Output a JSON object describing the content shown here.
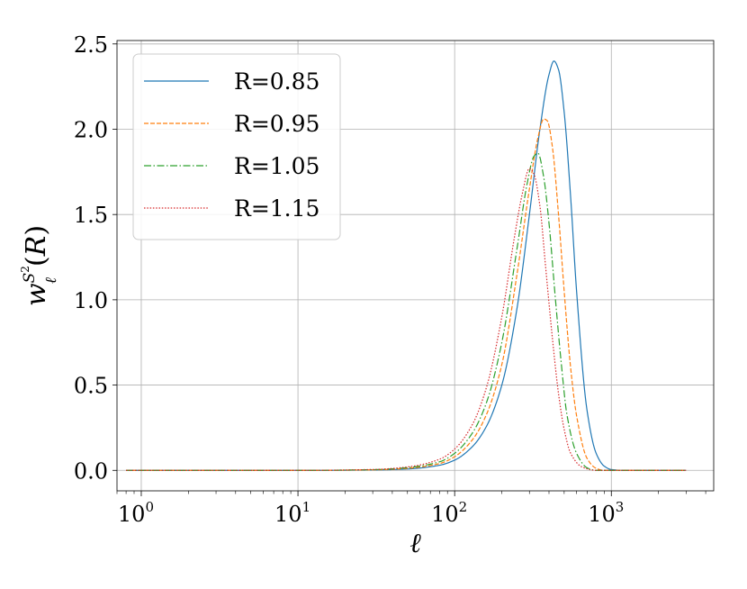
{
  "chart_data": {
    "type": "line",
    "xlabel": "ℓ",
    "ylabel": "w_ℓ^{S²}(R)",
    "xscale": "log",
    "xlim": [
      0.7,
      4500
    ],
    "ylim": [
      -0.12,
      2.52
    ],
    "grid": true,
    "legend_position": "upper-left",
    "yticks": [
      {
        "value": 0.0,
        "label": "0.0"
      },
      {
        "value": 0.5,
        "label": "0.5"
      },
      {
        "value": 1.0,
        "label": "1.0"
      },
      {
        "value": 1.5,
        "label": "1.5"
      },
      {
        "value": 2.0,
        "label": "2.0"
      },
      {
        "value": 2.5,
        "label": "2.5"
      }
    ],
    "xticks": [
      {
        "value": 1,
        "base": "10",
        "exp": "0"
      },
      {
        "value": 10,
        "base": "10",
        "exp": "1"
      },
      {
        "value": 100,
        "base": "10",
        "exp": "2"
      },
      {
        "value": 1000,
        "base": "10",
        "exp": "3"
      }
    ],
    "x_range": [
      0.8,
      3000
    ],
    "series": [
      {
        "name": "R=0.85",
        "color": "#1f77b4",
        "dash": "solid",
        "x": [
          0.8,
          10,
          30,
          50,
          80,
          100,
          130,
          160,
          200,
          250,
          300,
          350,
          400,
          430,
          460,
          500,
          550,
          600,
          700,
          800,
          900,
          1000,
          1200,
          3000
        ],
        "y": [
          0,
          0,
          0.002,
          0.008,
          0.03,
          0.06,
          0.14,
          0.26,
          0.5,
          0.95,
          1.5,
          2.0,
          2.32,
          2.4,
          2.35,
          2.1,
          1.6,
          1.05,
          0.35,
          0.1,
          0.025,
          0.005,
          0,
          0
        ]
      },
      {
        "name": "R=0.95",
        "color": "#ff7f0e",
        "dash": "dashed",
        "x": [
          0.8,
          10,
          30,
          50,
          80,
          100,
          130,
          160,
          200,
          250,
          300,
          340,
          370,
          390,
          420,
          460,
          500,
          550,
          600,
          700,
          800,
          900,
          3000
        ],
        "y": [
          0,
          0,
          0.003,
          0.012,
          0.04,
          0.08,
          0.18,
          0.33,
          0.62,
          1.15,
          1.65,
          1.95,
          2.06,
          2.05,
          1.9,
          1.5,
          1.05,
          0.6,
          0.32,
          0.07,
          0.012,
          0,
          0
        ]
      },
      {
        "name": "R=1.05",
        "color": "#2ca02c",
        "dash": "dashdot",
        "x": [
          0.8,
          10,
          30,
          50,
          80,
          100,
          130,
          160,
          200,
          250,
          290,
          320,
          340,
          370,
          400,
          440,
          480,
          520,
          600,
          700,
          800,
          3000
        ],
        "y": [
          0,
          0,
          0.004,
          0.016,
          0.05,
          0.1,
          0.22,
          0.4,
          0.75,
          1.3,
          1.68,
          1.84,
          1.86,
          1.72,
          1.45,
          1.0,
          0.62,
          0.33,
          0.1,
          0.015,
          0,
          0
        ]
      },
      {
        "name": "R=1.15",
        "color": "#d62728",
        "dash": "dotted",
        "x": [
          0.8,
          10,
          30,
          50,
          80,
          100,
          130,
          160,
          200,
          240,
          270,
          300,
          320,
          350,
          380,
          420,
          460,
          500,
          550,
          650,
          800,
          3000
        ],
        "y": [
          0,
          0,
          0.005,
          0.02,
          0.065,
          0.125,
          0.27,
          0.49,
          0.9,
          1.36,
          1.62,
          1.77,
          1.74,
          1.55,
          1.2,
          0.78,
          0.45,
          0.24,
          0.1,
          0.02,
          0,
          0
        ]
      }
    ]
  }
}
